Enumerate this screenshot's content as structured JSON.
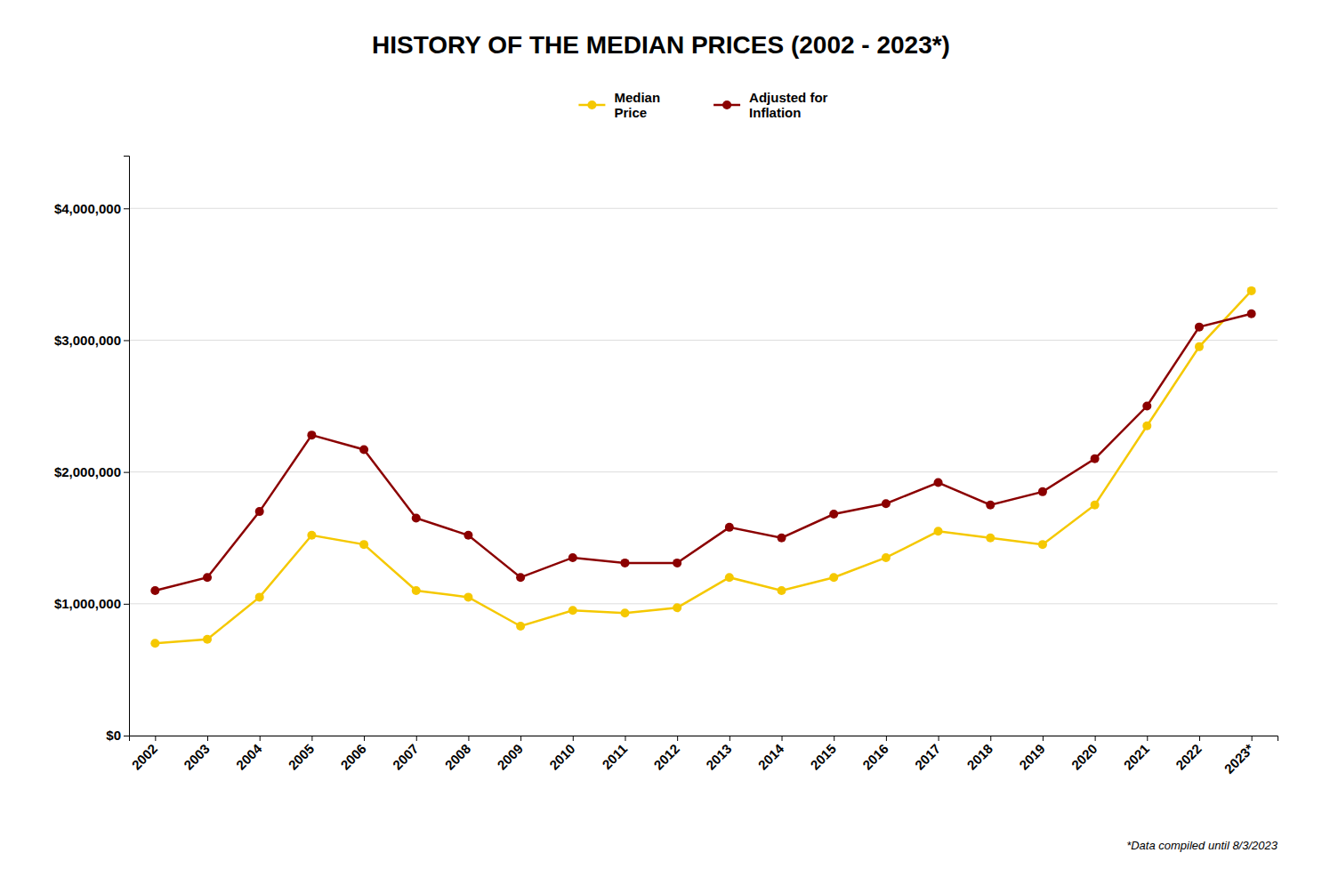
{
  "chart_data": {
    "type": "line",
    "title": "HISTORY OF THE MEDIAN PRICES (2002 - 2023*)",
    "categories": [
      "2002",
      "2003",
      "2004",
      "2005",
      "2006",
      "2007",
      "2008",
      "2009",
      "2010",
      "2011",
      "2012",
      "2013",
      "2014",
      "2015",
      "2016",
      "2017",
      "2018",
      "2019",
      "2020",
      "2021",
      "2022",
      "2023*"
    ],
    "series": [
      {
        "name": "Median\nPrice",
        "color": "#F5C800",
        "marker": "circle",
        "values": [
          700000,
          730000,
          1050000,
          1520000,
          1450000,
          1100000,
          1050000,
          830000,
          950000,
          930000,
          970000,
          1200000,
          1100000,
          1200000,
          1350000,
          1550000,
          1500000,
          1450000,
          1750000,
          2350000,
          2950000,
          3375000
        ]
      },
      {
        "name": "Adjusted for\nInflation",
        "color": "#8B0000",
        "marker": "circle",
        "values": [
          1100000,
          1200000,
          1700000,
          2280000,
          2170000,
          1650000,
          1520000,
          1200000,
          1350000,
          1310000,
          1310000,
          1580000,
          1500000,
          1680000,
          1760000,
          1920000,
          1750000,
          1850000,
          2100000,
          2500000,
          3100000,
          3200000
        ]
      }
    ],
    "ylim": [
      0,
      4400000
    ],
    "yticks": [
      {
        "value": 0,
        "label": "$0"
      },
      {
        "value": 1000000,
        "label": "$1,000,000"
      },
      {
        "value": 2000000,
        "label": "$2,000,000"
      },
      {
        "value": 3000000,
        "label": "$3,000,000"
      },
      {
        "value": 4000000,
        "label": "$4,000,000"
      }
    ],
    "grid": true,
    "legend": "top",
    "annotations": [
      "*Data compiled until 8/3/2023"
    ]
  }
}
